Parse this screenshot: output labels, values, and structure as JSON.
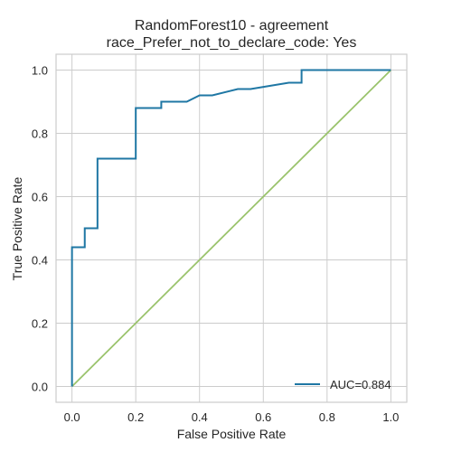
{
  "chart_data": {
    "type": "line",
    "title": "RandomForest10 - agreement",
    "subtitle": "race_Prefer_not_to_declare_code: Yes",
    "xlabel": "False Positive Rate",
    "ylabel": "True Positive Rate",
    "xlim": [
      -0.05,
      1.05
    ],
    "ylim": [
      -0.05,
      1.05
    ],
    "xticks": [
      "0.0",
      "0.2",
      "0.4",
      "0.6",
      "0.8",
      "1.0"
    ],
    "yticks": [
      "0.0",
      "0.2",
      "0.4",
      "0.6",
      "0.8",
      "1.0"
    ],
    "grid": true,
    "legend_position": "lower-right",
    "series": [
      {
        "name": "AUC=0.884",
        "color": "#1f77a4",
        "style": "step",
        "x": [
          0.0,
          0.0,
          0.04,
          0.04,
          0.08,
          0.08,
          0.2,
          0.2,
          0.28,
          0.28,
          0.36,
          0.4,
          0.44,
          0.52,
          0.56,
          0.68,
          0.72,
          0.72,
          1.0
        ],
        "y": [
          0.0,
          0.44,
          0.44,
          0.5,
          0.5,
          0.72,
          0.72,
          0.88,
          0.88,
          0.9,
          0.9,
          0.92,
          0.92,
          0.94,
          0.94,
          0.96,
          0.96,
          1.0,
          1.0
        ]
      },
      {
        "style": "diagonal",
        "color": "#9ac36c",
        "x": [
          0.0,
          1.0
        ],
        "y": [
          0.0,
          1.0
        ]
      }
    ]
  }
}
